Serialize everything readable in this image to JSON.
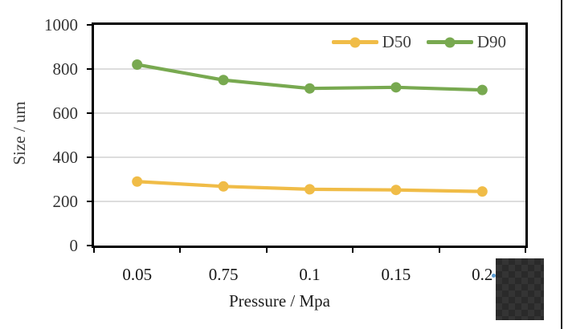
{
  "chart_data": {
    "type": "line",
    "title": "",
    "xlabel": "Pressure / Mpa",
    "ylabel": "Size / um",
    "categories": [
      "0.05",
      "0.75",
      "0.1",
      "0.15",
      "0.2"
    ],
    "series": [
      {
        "name": "D50",
        "color": "#F0BC47",
        "values": [
          290,
          268,
          255,
          252,
          245
        ]
      },
      {
        "name": "D90",
        "color": "#78A950",
        "values": [
          820,
          750,
          712,
          717,
          705
        ]
      }
    ],
    "ylim": [
      0,
      1000
    ],
    "ytick_values": [
      1000,
      800,
      600,
      400,
      200,
      0
    ],
    "ytick_labels": [
      "1000",
      "800",
      "600",
      "400",
      "200",
      "0"
    ],
    "grid": "horizontal",
    "gridline_color": "#D2D2D2",
    "legend_position": "top-right-inside"
  },
  "overlay": {
    "checker_block_colors": [
      "#2a2a2a",
      "#343434"
    ],
    "cursor_dot_color": "#5e9fd4"
  }
}
